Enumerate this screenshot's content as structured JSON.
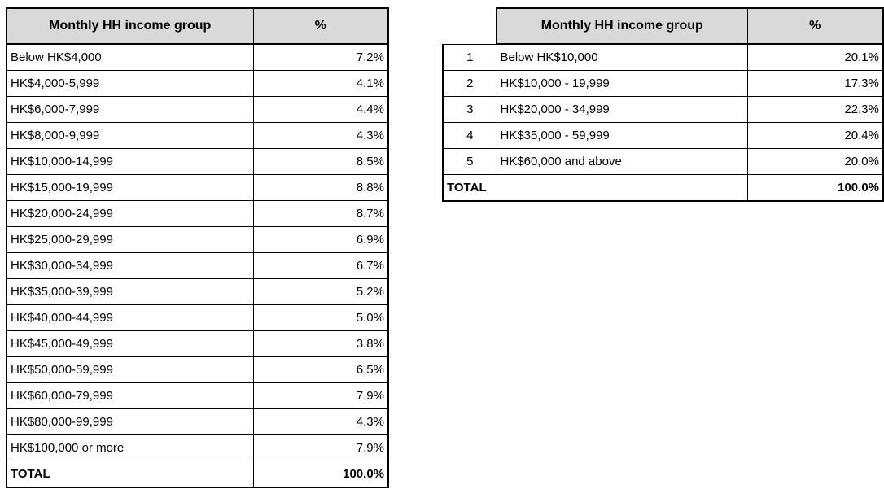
{
  "colors": {
    "header_fill": "#d9d9d9",
    "border": "#000000",
    "text": "#000000",
    "canvas_bg": "#ffffff"
  },
  "left_table": {
    "headers": [
      "Monthly HH income group",
      "%"
    ],
    "rows": [
      [
        "Below HK$4,000",
        "7.2%"
      ],
      [
        "HK$4,000-5,999",
        "4.1%"
      ],
      [
        "HK$6,000-7,999",
        "4.4%"
      ],
      [
        "HK$8,000-9,999",
        "4.3%"
      ],
      [
        "HK$10,000-14,999",
        "8.5%"
      ],
      [
        "HK$15,000-19,999",
        "8.8%"
      ],
      [
        "HK$20,000-24,999",
        "8.7%"
      ],
      [
        "HK$25,000-29,999",
        "6.9%"
      ],
      [
        "HK$30,000-34,999",
        "6.7%"
      ],
      [
        "HK$35,000-39,999",
        "5.2%"
      ],
      [
        "HK$40,000-44,999",
        "5.0%"
      ],
      [
        "HK$45,000-49,999",
        "3.8%"
      ],
      [
        "HK$50,000-59,999",
        "6.5%"
      ],
      [
        "HK$60,000-79,999",
        "7.9%"
      ],
      [
        "HK$80,000-99,999",
        "4.3%"
      ],
      [
        "HK$100,000 or more",
        "7.9%"
      ]
    ],
    "total_label": "TOTAL",
    "total_value": "100.0%"
  },
  "right_table": {
    "headers": [
      "Monthly HH income group",
      "%"
    ],
    "rows": [
      [
        "1",
        "Below HK$10,000",
        "20.1%"
      ],
      [
        "2",
        "HK$10,000 - 19,999",
        "17.3%"
      ],
      [
        "3",
        "HK$20,000 - 34,999",
        "22.3%"
      ],
      [
        "4",
        "HK$35,000 - 59,999",
        "20.4%"
      ],
      [
        "5",
        "HK$60,000 and above",
        "20.0%"
      ]
    ],
    "total_label": "TOTAL",
    "total_value": "100.0%"
  },
  "chart_data": [
    {
      "type": "table",
      "columns": [
        "Monthly HH income group",
        "%"
      ],
      "categories": [
        "Below HK$4,000",
        "HK$4,000-5,999",
        "HK$6,000-7,999",
        "HK$8,000-9,999",
        "HK$10,000-14,999",
        "HK$15,000-19,999",
        "HK$20,000-24,999",
        "HK$25,000-29,999",
        "HK$30,000-34,999",
        "HK$35,000-39,999",
        "HK$40,000-44,999",
        "HK$45,000-49,999",
        "HK$50,000-59,999",
        "HK$60,000-79,999",
        "HK$80,000-99,999",
        "HK$100,000 or more"
      ],
      "values": [
        7.2,
        4.1,
        4.4,
        4.3,
        8.5,
        8.8,
        8.7,
        6.9,
        6.7,
        5.2,
        5.0,
        3.8,
        6.5,
        7.9,
        4.3,
        7.9
      ],
      "total": 100.0
    },
    {
      "type": "table",
      "columns": [
        "#",
        "Monthly HH income group",
        "%"
      ],
      "group_numbers": [
        1,
        2,
        3,
        4,
        5
      ],
      "categories": [
        "Below HK$10,000",
        "HK$10,000 - 19,999",
        "HK$20,000 - 34,999",
        "HK$35,000 - 59,999",
        "HK$60,000 and above"
      ],
      "values": [
        20.1,
        17.3,
        22.3,
        20.4,
        20.0
      ],
      "total": 100.0
    }
  ]
}
